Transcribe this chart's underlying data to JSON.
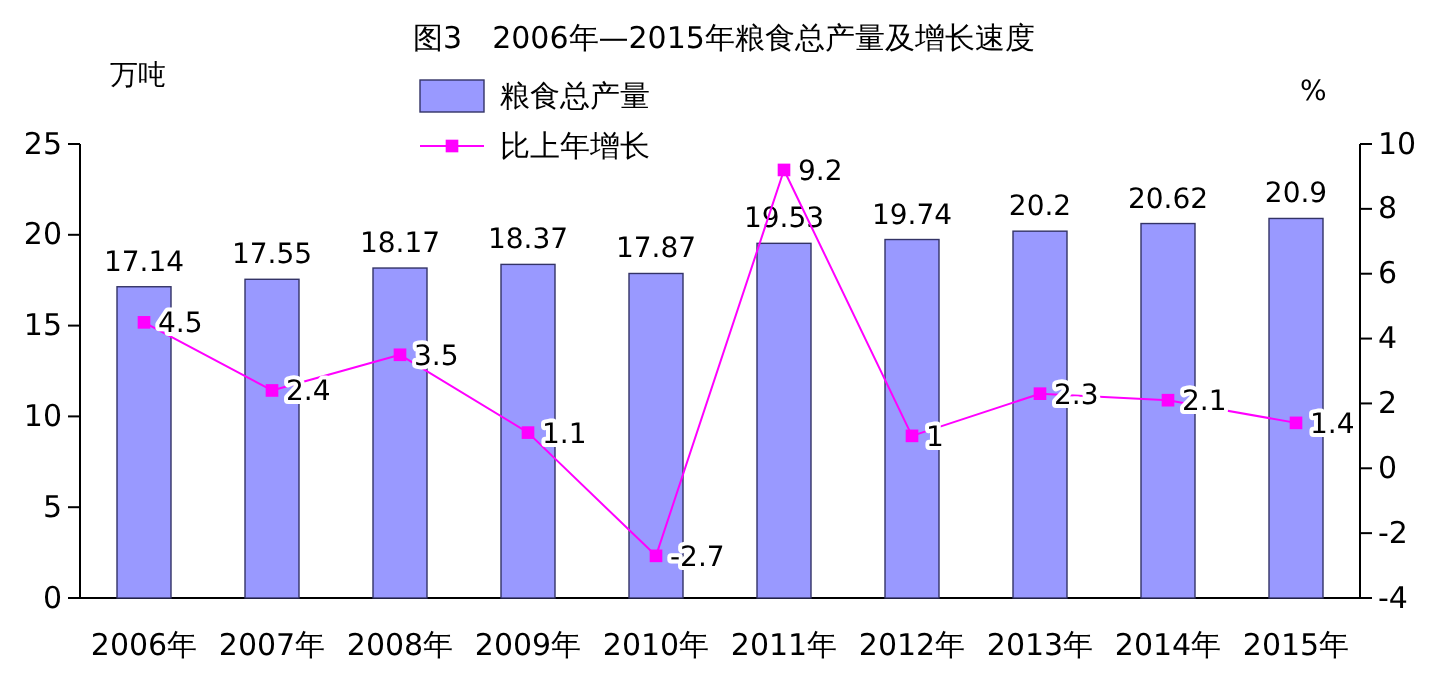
{
  "chart_data": {
    "type": "bar",
    "title": "图3　2006年—2015年粮食总产量及增长速度",
    "ylabel": "万吨",
    "y2label": "%",
    "categories": [
      "2006年",
      "2007年",
      "2008年",
      "2009年",
      "2010年",
      "2011年",
      "2012年",
      "2013年",
      "2014年",
      "2015年"
    ],
    "series": [
      {
        "name": "粮食总产量",
        "color": "#9999ff",
        "values": [
          17.14,
          17.55,
          18.17,
          18.37,
          17.87,
          19.53,
          19.74,
          20.2,
          20.62,
          20.9
        ]
      },
      {
        "name": "比上年增长",
        "type": "line",
        "axis": "y2",
        "color": "#ff00ff",
        "values": [
          4.5,
          2.4,
          3.5,
          1.1,
          -2.7,
          9.2,
          1,
          2.3,
          2.1,
          1.4
        ]
      }
    ],
    "ylim": [
      0,
      25
    ],
    "yticks": [
      0,
      5,
      10,
      15,
      20,
      25
    ],
    "y2lim": [
      -4,
      10
    ],
    "y2ticks": [
      -4,
      -2,
      0,
      2,
      4,
      6,
      8,
      10
    ],
    "data_labels": true,
    "legend": "top",
    "marker": "square",
    "grid": false
  }
}
